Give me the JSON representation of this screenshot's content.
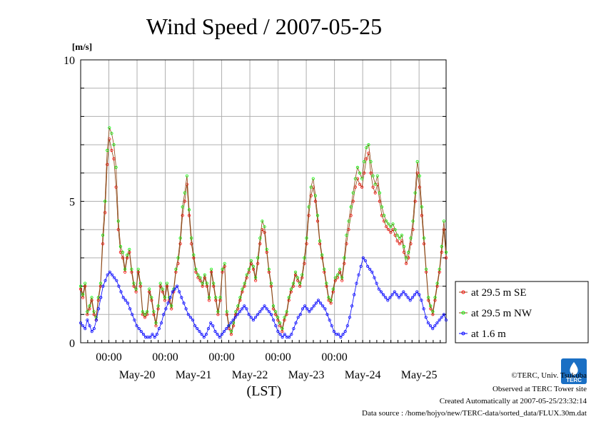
{
  "chart_data": {
    "type": "line",
    "title": "Wind Speed / 2007-05-25",
    "ylabel": "[m/s]",
    "xlabel": "(LST)",
    "ylim": [
      0,
      10
    ],
    "y_ticks": [
      "0",
      "5",
      "10"
    ],
    "x_range": [
      "2007-05-19T12:00",
      "2007-05-25T23:30"
    ],
    "x_time_labels": [
      "00:00",
      "00:00",
      "00:00",
      "00:00",
      "00:00"
    ],
    "x_date_labels": [
      "May-20",
      "May-21",
      "May-22",
      "May-23",
      "May-24",
      "May-25"
    ],
    "grid": true,
    "legend_placement": "right",
    "series": [
      {
        "name": "at 29.5 m SE",
        "color": "#ff0000",
        "line_color": "#8b4513",
        "values": [
          1.9,
          1.6,
          2.0,
          1.0,
          1.2,
          1.5,
          1.0,
          0.8,
          1.5,
          2.0,
          3.5,
          4.6,
          6.3,
          7.2,
          6.8,
          6.5,
          5.5,
          4.0,
          3.2,
          3.0,
          2.5,
          3.0,
          3.2,
          2.5,
          2.0,
          1.8,
          2.5,
          2.0,
          1.0,
          0.9,
          1.0,
          1.8,
          1.5,
          1.0,
          0.6,
          1.2,
          2.0,
          1.8,
          1.5,
          2.0,
          1.5,
          1.2,
          1.8,
          2.5,
          2.8,
          3.5,
          4.5,
          5.0,
          5.6,
          4.5,
          3.5,
          3.0,
          2.5,
          2.3,
          2.2,
          2.0,
          2.3,
          2.0,
          1.5,
          2.5,
          2.0,
          1.5,
          1.0,
          1.5,
          2.5,
          2.7,
          1.0,
          0.5,
          0.3,
          0.6,
          1.0,
          1.2,
          1.5,
          1.8,
          2.0,
          2.3,
          2.5,
          2.8,
          2.6,
          2.2,
          2.8,
          3.5,
          4.0,
          3.9,
          3.2,
          2.5,
          2.0,
          1.2,
          1.0,
          0.8,
          0.6,
          0.4,
          0.8,
          1.0,
          1.5,
          1.8,
          2.0,
          2.4,
          2.2,
          2.0,
          2.3,
          2.8,
          3.5,
          4.5,
          5.2,
          5.5,
          5.0,
          4.3,
          3.5,
          3.0,
          2.5,
          2.0,
          1.5,
          1.4,
          1.8,
          2.2,
          2.3,
          2.5,
          2.2,
          2.8,
          3.5,
          4.0,
          4.5,
          5.0,
          5.5,
          5.8,
          5.6,
          5.5,
          6.0,
          6.5,
          6.7,
          6.0,
          5.5,
          5.3,
          5.6,
          5.0,
          4.5,
          4.3,
          4.1,
          4.0,
          3.9,
          4.0,
          3.8,
          3.6,
          3.5,
          3.6,
          3.2,
          2.8,
          3.0,
          3.5,
          4.0,
          5.0,
          6.0,
          5.5,
          4.5,
          3.5,
          2.5,
          1.5,
          1.2,
          1.0,
          1.5,
          2.0,
          2.5,
          3.2,
          4.0,
          3.0
        ]
      },
      {
        "name": "at 29.5 m NW",
        "color": "#00ff00",
        "line_color": "#8b4513",
        "values": [
          2.0,
          1.7,
          2.1,
          1.1,
          1.3,
          1.6,
          1.1,
          0.9,
          1.6,
          2.1,
          3.8,
          5.0,
          6.8,
          7.6,
          7.4,
          7.0,
          6.2,
          4.3,
          3.4,
          3.2,
          2.6,
          3.1,
          3.3,
          2.6,
          2.1,
          1.9,
          2.6,
          2.1,
          1.1,
          1.0,
          1.1,
          1.9,
          1.6,
          1.1,
          0.7,
          1.3,
          2.1,
          1.9,
          1.6,
          2.1,
          1.6,
          1.3,
          1.9,
          2.6,
          3.0,
          3.7,
          4.8,
          5.3,
          5.9,
          4.7,
          3.7,
          3.1,
          2.6,
          2.4,
          2.3,
          2.1,
          2.4,
          2.1,
          1.6,
          2.6,
          2.1,
          1.6,
          1.1,
          1.6,
          2.6,
          2.8,
          1.1,
          0.6,
          0.4,
          0.7,
          1.1,
          1.3,
          1.6,
          1.9,
          2.1,
          2.4,
          2.6,
          2.9,
          2.7,
          2.3,
          3.0,
          3.7,
          4.3,
          4.1,
          3.3,
          2.6,
          2.1,
          1.3,
          1.1,
          0.9,
          0.7,
          0.5,
          0.9,
          1.1,
          1.6,
          1.9,
          2.1,
          2.5,
          2.3,
          2.1,
          2.4,
          3.0,
          3.7,
          4.8,
          5.5,
          5.8,
          5.2,
          4.5,
          3.6,
          3.1,
          2.6,
          2.1,
          1.6,
          1.5,
          1.9,
          2.3,
          2.4,
          2.6,
          2.3,
          3.0,
          3.8,
          4.3,
          4.8,
          5.3,
          5.8,
          6.2,
          6.0,
          5.8,
          6.4,
          6.9,
          7.0,
          6.4,
          5.9,
          5.6,
          5.9,
          5.3,
          4.8,
          4.5,
          4.3,
          4.2,
          4.1,
          4.2,
          4.0,
          3.8,
          3.7,
          3.8,
          3.4,
          3.0,
          3.2,
          3.7,
          4.3,
          5.3,
          6.4,
          5.9,
          4.8,
          3.7,
          2.6,
          1.6,
          1.3,
          1.1,
          1.6,
          2.1,
          2.6,
          3.4,
          4.3,
          3.2
        ]
      },
      {
        "name": "at 1.6 m",
        "color": "#0000ff",
        "line_color": "#0000ff",
        "values": [
          0.7,
          0.6,
          0.5,
          0.8,
          0.6,
          0.4,
          0.5,
          0.8,
          1.2,
          1.6,
          2.0,
          2.2,
          2.4,
          2.5,
          2.4,
          2.3,
          2.2,
          2.0,
          1.8,
          1.6,
          1.5,
          1.4,
          1.2,
          1.0,
          0.8,
          0.6,
          0.5,
          0.4,
          0.3,
          0.2,
          0.2,
          0.2,
          0.3,
          0.2,
          0.3,
          0.5,
          0.7,
          1.0,
          1.2,
          1.4,
          1.6,
          1.8,
          1.9,
          2.0,
          1.8,
          1.6,
          1.4,
          1.2,
          1.0,
          0.9,
          0.8,
          0.6,
          0.5,
          0.4,
          0.3,
          0.2,
          0.3,
          0.5,
          0.7,
          0.6,
          0.4,
          0.3,
          0.2,
          0.3,
          0.4,
          0.5,
          0.6,
          0.7,
          0.8,
          0.9,
          1.0,
          1.1,
          1.2,
          1.3,
          1.2,
          1.0,
          0.9,
          0.8,
          0.9,
          1.0,
          1.1,
          1.2,
          1.3,
          1.2,
          1.1,
          1.0,
          0.8,
          0.6,
          0.4,
          0.3,
          0.2,
          0.3,
          0.2,
          0.2,
          0.3,
          0.5,
          0.7,
          0.9,
          1.0,
          1.2,
          1.3,
          1.2,
          1.1,
          1.2,
          1.3,
          1.4,
          1.5,
          1.4,
          1.3,
          1.2,
          1.0,
          0.8,
          0.6,
          0.4,
          0.3,
          0.3,
          0.2,
          0.3,
          0.4,
          0.6,
          0.9,
          1.3,
          1.7,
          2.1,
          2.4,
          2.7,
          3.0,
          2.9,
          2.7,
          2.6,
          2.5,
          2.3,
          2.1,
          1.9,
          1.8,
          1.7,
          1.6,
          1.5,
          1.6,
          1.7,
          1.8,
          1.7,
          1.6,
          1.7,
          1.8,
          1.7,
          1.6,
          1.5,
          1.6,
          1.7,
          1.8,
          1.7,
          1.5,
          1.2,
          0.9,
          0.7,
          0.6,
          0.5,
          0.6,
          0.7,
          0.8,
          0.9,
          1.0,
          0.8
        ]
      }
    ]
  },
  "credits": {
    "copyright": "©TERC, Univ. Tsukuba",
    "observed": "Observed at TERC Tower site",
    "created": "Created Automatically at 2007-05-25/23:32:14",
    "source": "Data source : /home/hojyo/new/TERC-data/sorted_data/FLUX.30m.dat"
  },
  "logo": {
    "text": "TERC",
    "color": "#1a6fc4"
  }
}
